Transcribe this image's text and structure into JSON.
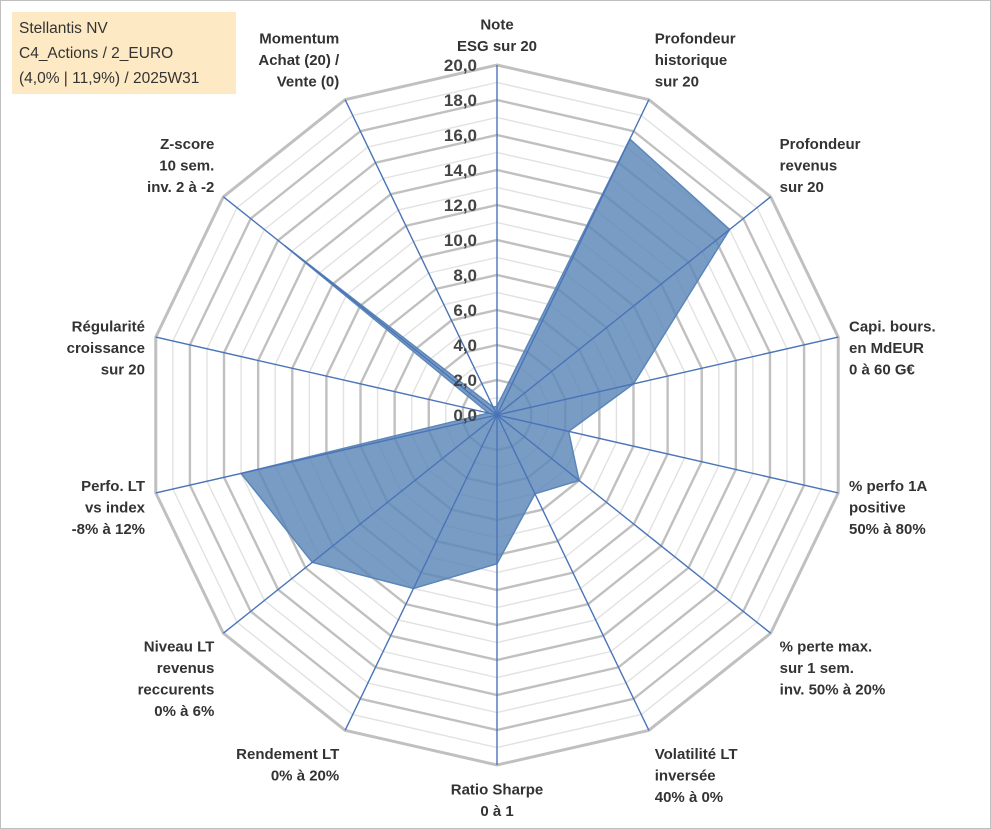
{
  "header": {
    "line1": "Stellantis NV",
    "line2": "C4_Actions / 2_EURO",
    "line3": "(4,0% | 11,9%) / 2025W31"
  },
  "colors": {
    "fill": "#5b86b8",
    "spoke": "#4a74b8",
    "grid_major": "#c0c0c0",
    "grid_minor": "#e2e2e2",
    "header_bg": "#fde9c4"
  },
  "chart_data": {
    "type": "radar",
    "axes": [
      "Note\nESG sur 20",
      "Profondeur\nhistorique\nsur 20",
      "Profondeur\nrevenus\nsur 20",
      "Capi. bours.\nen MdEUR\n0 à 60 G€",
      "% perfo 1A\npositive\n50% à 80%",
      "% perte max.\nsur 1 sem.\ninv. 50% à 20%",
      "Volatilité LT\ninversée\n40% à 0%",
      "Ratio Sharpe\n0 à 1",
      "Rendement LT\n0% à 20%",
      "Niveau LT\nrevenus\nreccurents\n0% à 6%",
      "Perfo. LT\nvs index\n-8% à 12%",
      "Régularité\ncroissance\nsur 20",
      "Z-score\n10 sem.\ninv. 2 à -2",
      "Momentum\nAchat (20) /\nVente (0)"
    ],
    "values": [
      0.5,
      17.5,
      17.0,
      8.0,
      4.2,
      6.0,
      5.0,
      8.5,
      11.0,
      13.5,
      15.0,
      0.5,
      15.5,
      0.5
    ],
    "rlim": [
      0,
      20
    ],
    "tick_labels": [
      "0,0",
      "2,0",
      "4,0",
      "6,0",
      "8,0",
      "10,0",
      "12,0",
      "14,0",
      "16,0",
      "18,0",
      "20,0"
    ],
    "grid": true,
    "legend": "none"
  }
}
